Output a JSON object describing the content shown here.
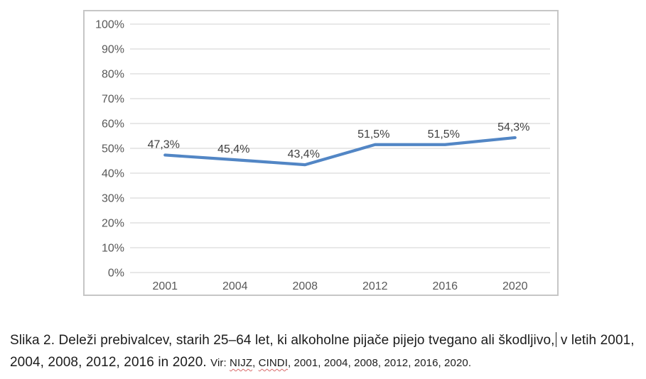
{
  "chart_data": {
    "type": "line",
    "categories": [
      "2001",
      "2004",
      "2008",
      "2012",
      "2016",
      "2020"
    ],
    "values": [
      47.3,
      45.4,
      43.4,
      51.5,
      51.5,
      54.3
    ],
    "value_labels": [
      "47,3%",
      "45,4%",
      "43,4%",
      "51,5%",
      "51,5%",
      "54,3%"
    ],
    "y_ticks": [
      0,
      10,
      20,
      30,
      40,
      50,
      60,
      70,
      80,
      90,
      100
    ],
    "y_tick_labels": [
      "0%",
      "10%",
      "20%",
      "30%",
      "40%",
      "50%",
      "60%",
      "70%",
      "80%",
      "90%",
      "100%"
    ],
    "ylim": [
      0,
      100
    ],
    "xlabel": "",
    "ylabel": "",
    "title": "",
    "grid": true,
    "legend": false,
    "line_color": "#5286C5",
    "grid_color": "#D9D9D9",
    "axis_text_color": "#595959",
    "data_label_color": "#404040",
    "frame_border_color": "#C6C6C6"
  },
  "caption": {
    "line1_before_caret": "Slika 2. Deleži prebivalcev, starih 25–64 let, ki alkoholne pijače pijejo tvegano ali škodljivo,",
    "line1_after_caret": " v letih 2001,",
    "line2_main": "2004, 2008, 2012, 2016 in 2020. ",
    "source_segments": [
      {
        "text": "Vir: ",
        "misspelled": false
      },
      {
        "text": "NIJZ",
        "misspelled": true
      },
      {
        "text": ", ",
        "misspelled": false
      },
      {
        "text": "CINDI",
        "misspelled": true
      },
      {
        "text": ", 2001, 2004, 2008, 2012, 2016, 2020.",
        "misspelled": false
      }
    ],
    "spellcheck_color": "#D96B6B"
  }
}
